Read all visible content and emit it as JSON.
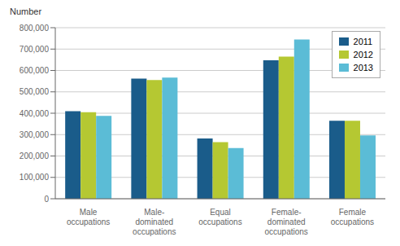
{
  "chart_data": {
    "type": "bar",
    "ylabel": "Number",
    "categories": [
      "Male\noccupations",
      "Male-\ndominated\noccupations",
      "Equal\noccupations",
      "Female-\ndominated\noccupations",
      "Female\noccupations"
    ],
    "series": [
      {
        "name": "2011",
        "color": "#1a5c8a",
        "values": [
          410000,
          562000,
          282000,
          648000,
          365000
        ]
      },
      {
        "name": "2012",
        "color": "#b5c832",
        "values": [
          405000,
          555000,
          265000,
          665000,
          365000
        ]
      },
      {
        "name": "2013",
        "color": "#5bbcd6",
        "values": [
          388000,
          567000,
          237000,
          745000,
          296000
        ]
      }
    ],
    "ylim": [
      0,
      800000
    ],
    "yticks": [
      0,
      {
        "value": 100000,
        "label": "100,000"
      },
      {
        "value": 200000,
        "label": "200,000"
      },
      {
        "value": 300000,
        "label": "300,000"
      },
      {
        "value": 400000,
        "label": "400,000"
      },
      {
        "value": 500000,
        "label": "500,000"
      },
      {
        "value": 600000,
        "label": "600,000"
      },
      {
        "value": 700000,
        "label": "700,000"
      },
      {
        "value": 800000,
        "label": "800,000"
      }
    ],
    "grid": true,
    "legend": "upper right"
  }
}
